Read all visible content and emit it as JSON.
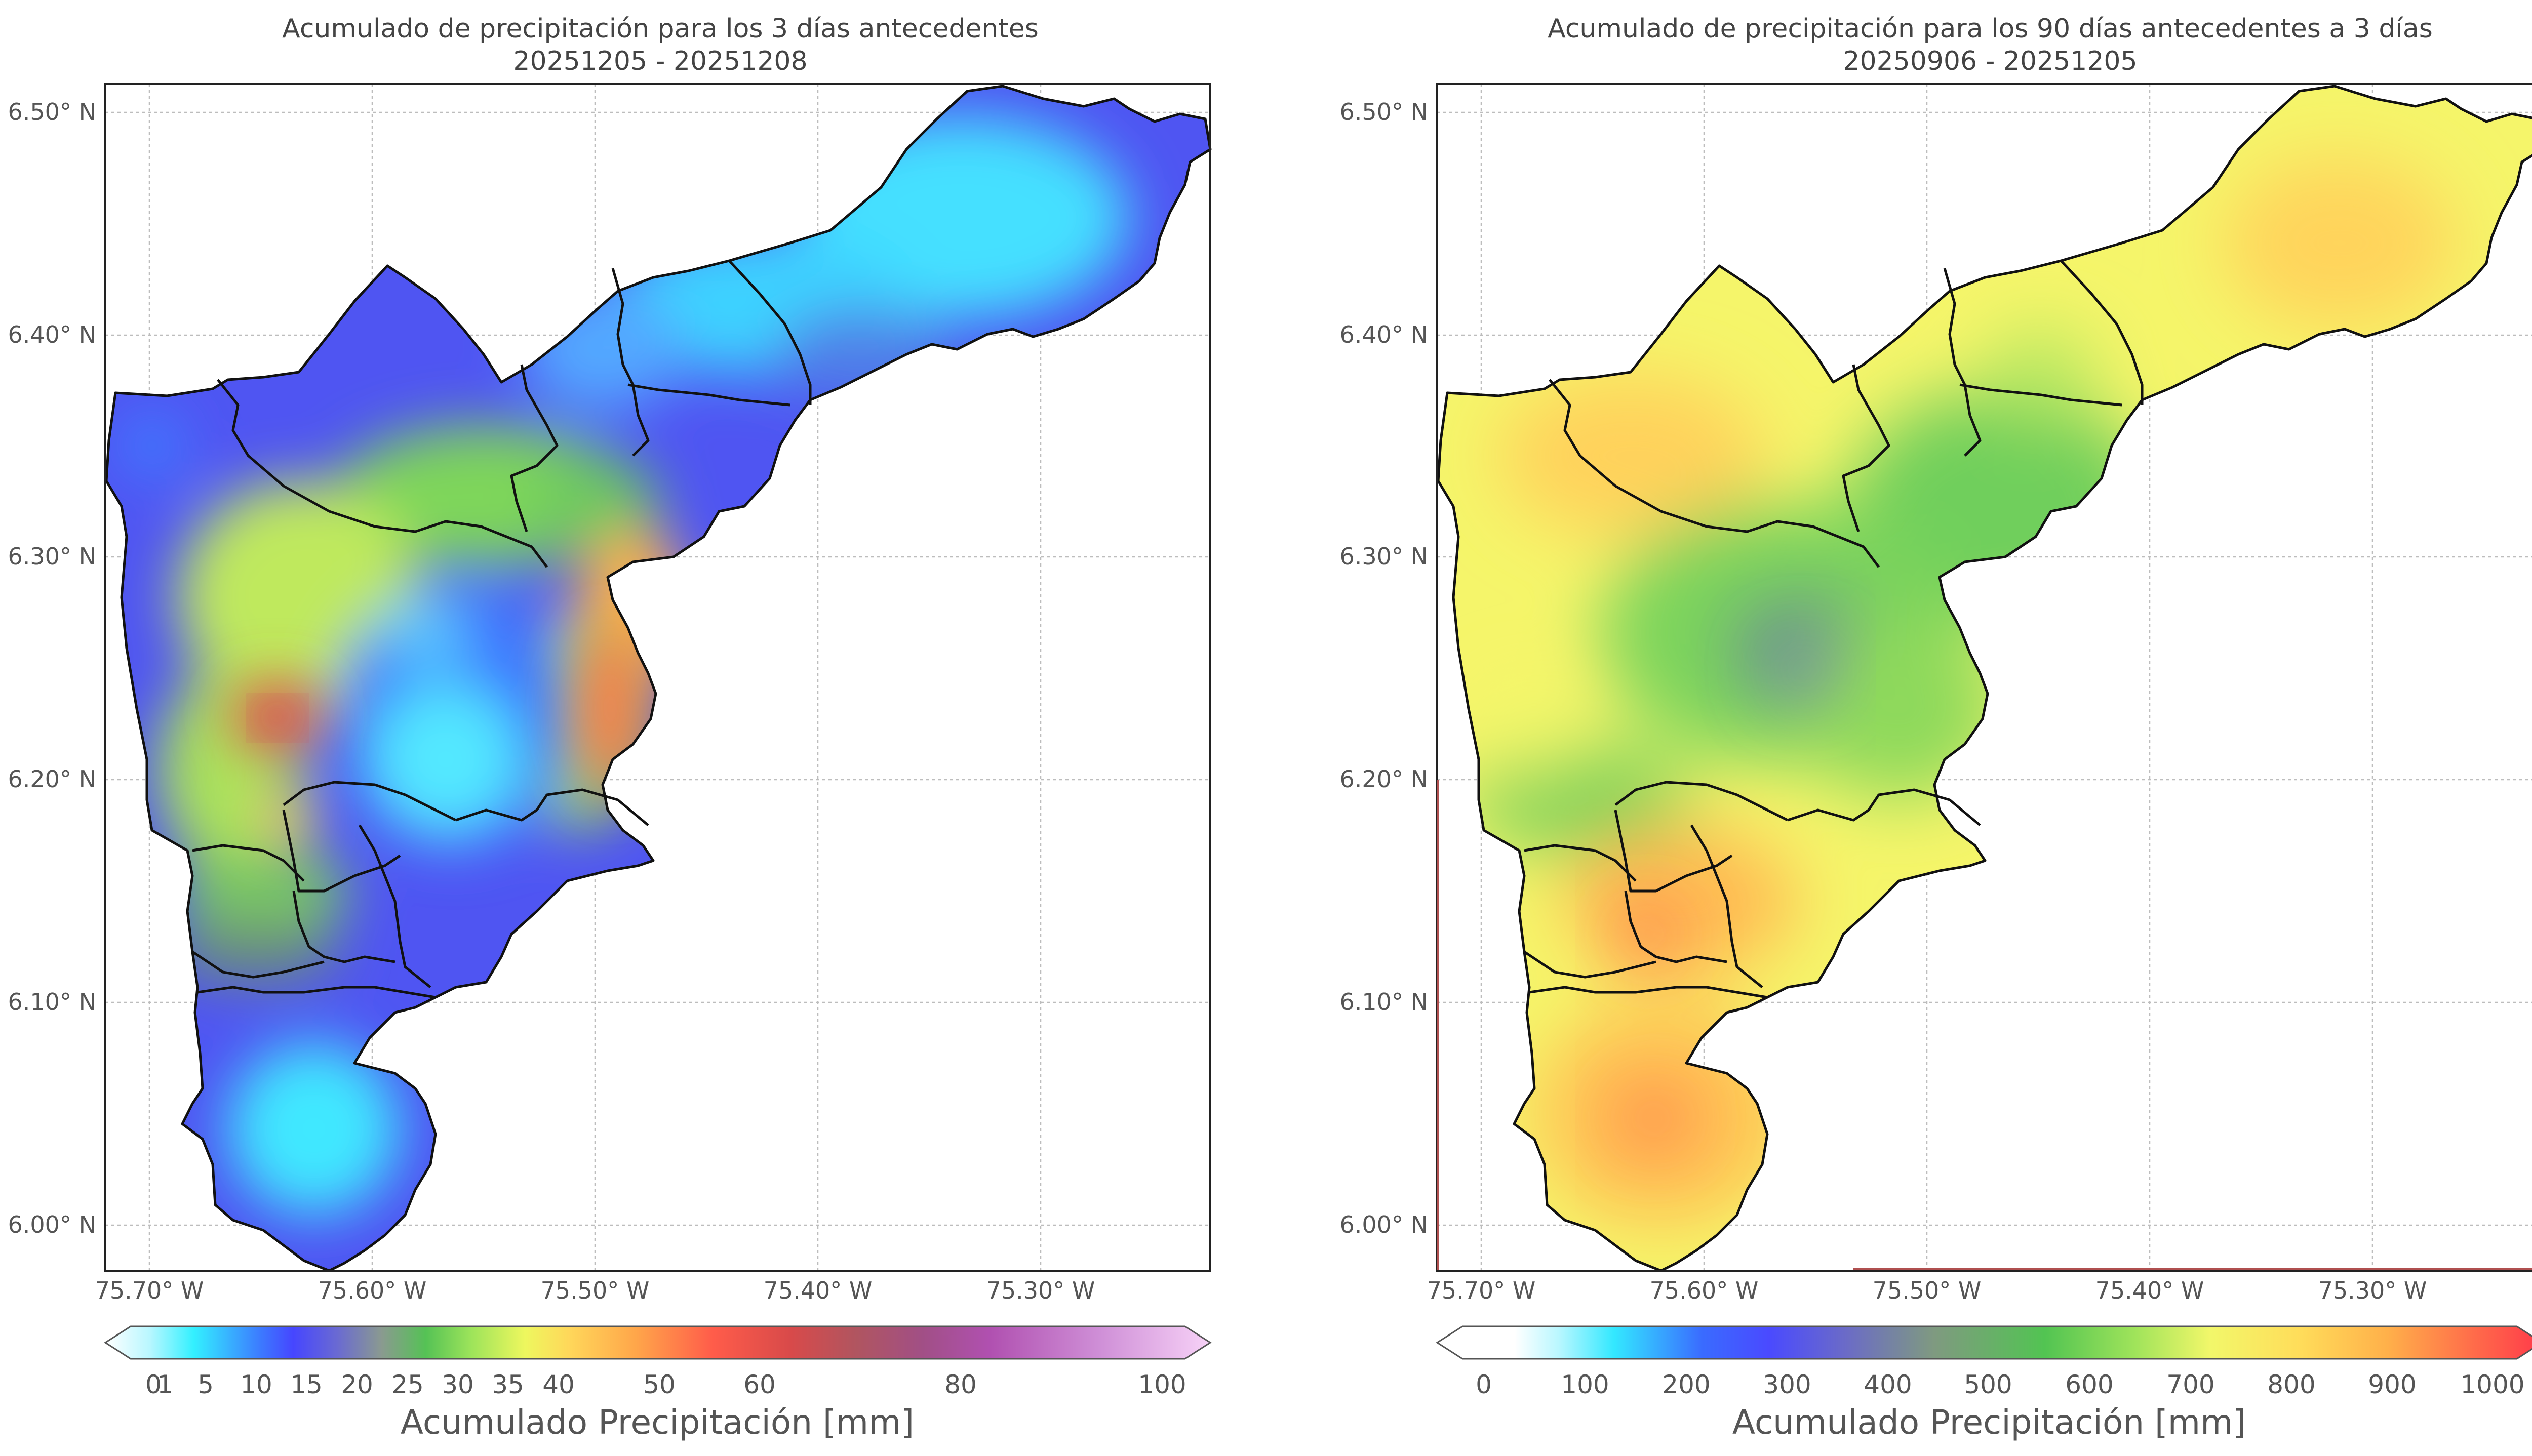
{
  "left_panel": {
    "title_line1": "Acumulado de precipitación para los 3 días antecedentes",
    "title_line2": "20251205 - 20251208",
    "colorbar_label": "Acumulado Precipitación [mm]",
    "colorbar_ticks": [
      "0",
      "1",
      "5",
      "10",
      "15",
      "20",
      "25",
      "30",
      "35",
      "40",
      "50",
      "60",
      "80",
      "100"
    ]
  },
  "right_panel": {
    "title_line1": "Acumulado de precipitación para los 90 días antecedentes a 3 días",
    "title_line2": "20250906 - 20251205",
    "colorbar_label": "Acumulado Precipitación [mm]",
    "colorbar_ticks": [
      "0",
      "100",
      "200",
      "300",
      "400",
      "500",
      "600",
      "700",
      "800",
      "900",
      "1000"
    ]
  },
  "axes": {
    "lat_labels": [
      "6.50° N",
      "6.40° N",
      "6.30° N",
      "6.20° N",
      "6.10° N",
      "6.00° N"
    ],
    "lon_labels": [
      "75.70° W",
      "75.60° W",
      "75.50° W",
      "75.40° W",
      "75.30° W"
    ]
  },
  "colors": {
    "left_cbar": [
      "#ffffff",
      "#b9f7ff",
      "#33f0ff",
      "#3c7bff",
      "#4646ff",
      "#6a6ad2",
      "#8a9a90",
      "#55c255",
      "#9be35a",
      "#eef75e",
      "#ffd75a",
      "#ffa64a",
      "#ff5c4a",
      "#d84a4a",
      "#b05560",
      "#a14f86",
      "#b050b0",
      "#cf8fd7",
      "#f7d2f7"
    ],
    "right_cbar": [
      "#ffffff",
      "#b9f7ff",
      "#33e8ff",
      "#3a6bff",
      "#4a4aff",
      "#6b6bc7",
      "#7f9a80",
      "#52c452",
      "#9ee35a",
      "#f2f76a",
      "#ffdd5a",
      "#ffb04a",
      "#ff6a4a",
      "#ff3a4a"
    ]
  }
}
